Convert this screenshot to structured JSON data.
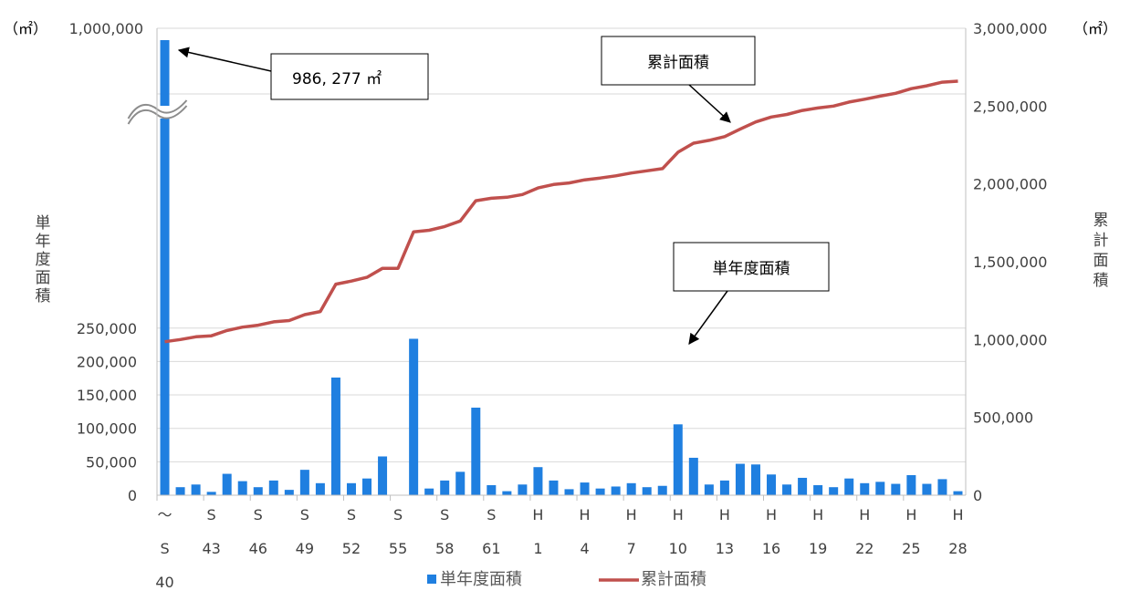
{
  "chart_data": {
    "type": "bar",
    "title": "",
    "x_tick_labels": [
      {
        "line1": "〜",
        "line2": "S",
        "line3": "40"
      },
      {
        "line1": "S",
        "line2": "43"
      },
      {
        "line1": "S",
        "line2": "46"
      },
      {
        "line1": "S",
        "line2": "49"
      },
      {
        "line1": "S",
        "line2": "52"
      },
      {
        "line1": "S",
        "line2": "55"
      },
      {
        "line1": "S",
        "line2": "58"
      },
      {
        "line1": "S",
        "line2": "61"
      },
      {
        "line1": "H",
        "line2": "1"
      },
      {
        "line1": "H",
        "line2": "4"
      },
      {
        "line1": "H",
        "line2": "7"
      },
      {
        "line1": "H",
        "line2": "10"
      },
      {
        "line1": "H",
        "line2": "13"
      },
      {
        "line1": "H",
        "line2": "16"
      },
      {
        "line1": "H",
        "line2": "19"
      },
      {
        "line1": "H",
        "line2": "22"
      },
      {
        "line1": "H",
        "line2": "25"
      },
      {
        "line1": "H",
        "line2": "28"
      }
    ],
    "left_axis": {
      "label": "単年度面積",
      "unit": "（㎡）",
      "ticks": [
        "0",
        "50,000",
        "100,000",
        "150,000",
        "200,000",
        "250,000"
      ],
      "broken_top_label": "1,000,000",
      "ylim": [
        0,
        280000
      ]
    },
    "right_axis": {
      "label": "累計面積",
      "unit": "（㎡）",
      "ticks": [
        "0",
        "500,000",
        "1,000,000",
        "1,500,000",
        "2,000,000",
        "2,500,000",
        "3,000,000"
      ],
      "ylim": [
        0,
        3000000
      ]
    },
    "series": [
      {
        "name": "単年度面積",
        "type": "bar",
        "color": "#1f7fe0",
        "values": [
          986277,
          12000,
          16000,
          5000,
          32000,
          21000,
          12000,
          22000,
          8000,
          38000,
          18000,
          176000,
          18000,
          25000,
          58000,
          0,
          234000,
          10000,
          22000,
          35000,
          131000,
          15000,
          6000,
          16000,
          42000,
          22000,
          9000,
          19000,
          10000,
          13000,
          18000,
          12000,
          14000,
          106000,
          56000,
          16000,
          22000,
          47000,
          46000,
          31000,
          16000,
          26000,
          15000,
          12000,
          25000,
          18000,
          20000,
          17000,
          30000,
          17000,
          24000,
          6000
        ]
      },
      {
        "name": "累計面積",
        "type": "line",
        "color": "#c0504d",
        "values": [
          986277,
          1000000,
          1018000,
          1024000,
          1058000,
          1080000,
          1092000,
          1114000,
          1122000,
          1160000,
          1180000,
          1356000,
          1376000,
          1400000,
          1458000,
          1458000,
          1692000,
          1702000,
          1726000,
          1762000,
          1892000,
          1908000,
          1914000,
          1932000,
          1974000,
          1996000,
          2006000,
          2026000,
          2038000,
          2052000,
          2070000,
          2084000,
          2098000,
          2204000,
          2262000,
          2280000,
          2304000,
          2352000,
          2398000,
          2430000,
          2446000,
          2472000,
          2488000,
          2500000,
          2526000,
          2544000,
          2564000,
          2582000,
          2612000,
          2630000,
          2654000,
          2660000
        ]
      }
    ],
    "annotations": [
      {
        "text": "986, 277 ㎡",
        "target": "bar-0"
      },
      {
        "text": "累計面積",
        "target": "line-37"
      },
      {
        "text": "単年度面積",
        "target": "bar-33"
      }
    ],
    "legend": {
      "placement": "bottom",
      "items": [
        "単年度面積",
        "累計面積"
      ]
    },
    "grid": true
  }
}
